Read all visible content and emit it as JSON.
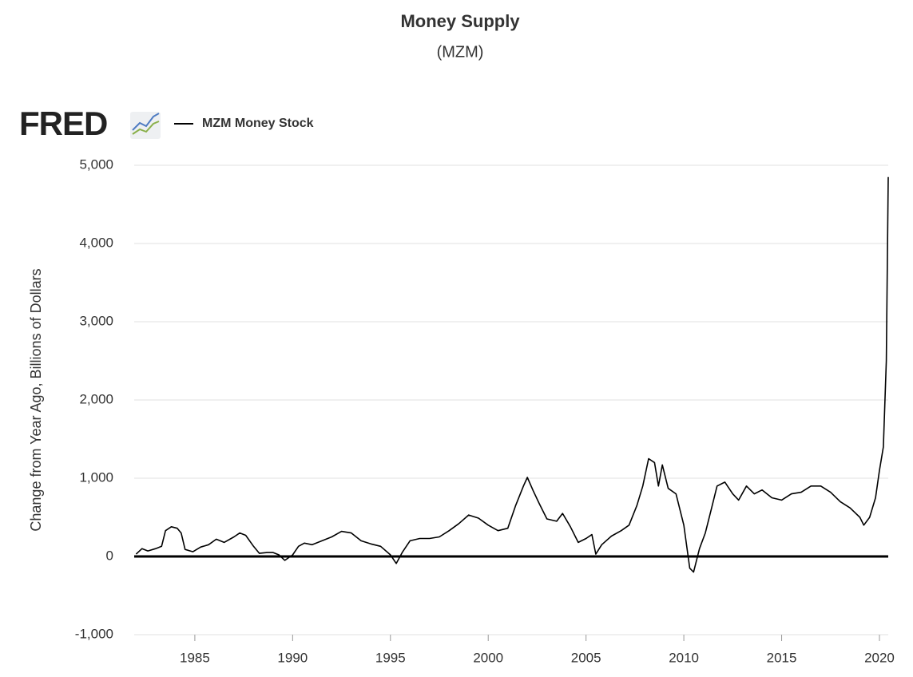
{
  "chart_data": {
    "type": "line",
    "title": "Money Supply",
    "subtitle": "(MZM)",
    "logo": "FRED",
    "y_label": "Change from Year Ago, Billions of Dollars",
    "grid": true,
    "xlim": [
      1981.9,
      2020.45
    ],
    "xticks": [
      1985,
      1990,
      1995,
      2000,
      2005,
      2010,
      2015,
      2020
    ],
    "ylim": [
      -1000,
      5000
    ],
    "yticks": [
      {
        "value": -1000,
        "label": "-1,000"
      },
      0,
      {
        "value": 1000,
        "label": "1,000"
      },
      {
        "value": 2000,
        "label": "2,000"
      },
      {
        "value": 3000,
        "label": "3,000"
      },
      {
        "value": 4000,
        "label": "4,000"
      },
      {
        "value": 5000,
        "label": "5,000"
      }
    ],
    "x": [
      1982.0,
      1982.3,
      1982.6,
      1983.0,
      1983.3,
      1983.5,
      1983.8,
      1984.1,
      1984.3,
      1984.5,
      1984.9,
      1985.3,
      1985.7,
      1986.1,
      1986.5,
      1987.0,
      1987.3,
      1987.6,
      1988.0,
      1988.3,
      1988.7,
      1989.0,
      1989.3,
      1989.6,
      1990.0,
      1990.3,
      1990.6,
      1991.0,
      1991.5,
      1992.0,
      1992.5,
      1993.0,
      1993.5,
      1994.0,
      1994.5,
      1995.0,
      1995.3,
      1995.6,
      1996.0,
      1996.5,
      1997.0,
      1997.5,
      1998.0,
      1998.5,
      1999.0,
      1999.5,
      2000.0,
      2000.5,
      2001.0,
      2001.4,
      2001.8,
      2002.0,
      2002.3,
      2002.6,
      2003.0,
      2003.5,
      2003.8,
      2004.2,
      2004.6,
      2005.0,
      2005.3,
      2005.5,
      2005.8,
      2006.3,
      2006.8,
      2007.2,
      2007.6,
      2007.9,
      2008.2,
      2008.5,
      2008.7,
      2008.9,
      2009.2,
      2009.6,
      2010.0,
      2010.3,
      2010.5,
      2010.8,
      2011.1,
      2011.4,
      2011.7,
      2012.1,
      2012.5,
      2012.8,
      2013.2,
      2013.6,
      2014.0,
      2014.5,
      2015.0,
      2015.5,
      2016.0,
      2016.5,
      2017.0,
      2017.5,
      2018.0,
      2018.5,
      2019.0,
      2019.2,
      2019.5,
      2019.8,
      2020.0,
      2020.2,
      2020.35,
      2020.45
    ],
    "series": [
      {
        "name": "MZM Money Stock",
        "color": "#000000",
        "values": [
          30,
          100,
          70,
          100,
          130,
          330,
          380,
          360,
          300,
          90,
          60,
          120,
          150,
          220,
          180,
          250,
          300,
          270,
          130,
          40,
          50,
          50,
          20,
          -50,
          20,
          130,
          170,
          150,
          200,
          250,
          320,
          300,
          200,
          160,
          130,
          20,
          -90,
          50,
          200,
          230,
          230,
          250,
          330,
          420,
          530,
          490,
          400,
          330,
          360,
          650,
          900,
          1010,
          840,
          680,
          480,
          450,
          550,
          380,
          180,
          230,
          280,
          30,
          150,
          260,
          330,
          400,
          650,
          900,
          1250,
          1200,
          900,
          1170,
          870,
          800,
          400,
          -150,
          -200,
          100,
          300,
          600,
          900,
          950,
          800,
          720,
          900,
          800,
          850,
          750,
          720,
          800,
          820,
          900,
          900,
          820,
          700,
          620,
          500,
          400,
          500,
          750,
          1100,
          1400,
          2500,
          4850
        ]
      }
    ]
  }
}
